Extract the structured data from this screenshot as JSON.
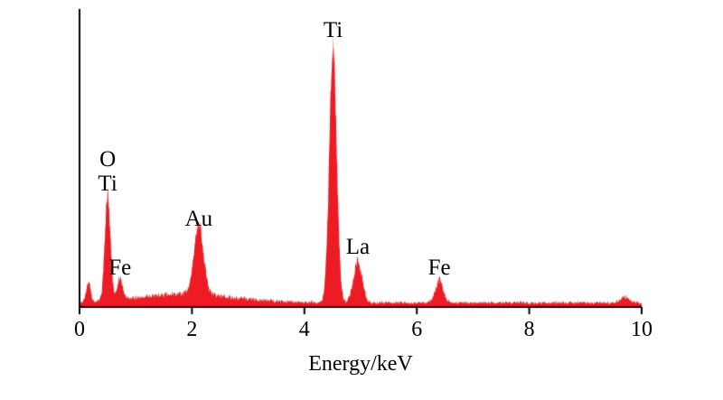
{
  "figure": {
    "background_color": "#ffffff",
    "axis_color": "#000000",
    "spectrum_color": "#ed1c24"
  },
  "chart_data": {
    "type": "area",
    "title": "",
    "xlabel": "Energy/keV",
    "ylabel": "",
    "xlim": [
      0,
      10
    ],
    "x_ticks": [
      0,
      2,
      4,
      6,
      8,
      10
    ],
    "grid": false,
    "legend": false,
    "peaks": [
      {
        "label": "",
        "energy": 0.16,
        "height": 0.07,
        "width": 0.035
      },
      {
        "label": "O\nTi",
        "energy": 0.5,
        "height": 0.36,
        "width": 0.05
      },
      {
        "label": "Fe",
        "energy": 0.72,
        "height": 0.075,
        "width": 0.045
      },
      {
        "label": "Au",
        "energy": 2.12,
        "height": 0.24,
        "width": 0.085
      },
      {
        "label": "Ti",
        "energy": 4.51,
        "height": 0.88,
        "width": 0.065
      },
      {
        "label": "La",
        "energy": 4.95,
        "height": 0.145,
        "width": 0.075
      },
      {
        "label": "Fe",
        "energy": 6.4,
        "height": 0.075,
        "width": 0.07
      },
      {
        "label": "",
        "energy": 9.7,
        "height": 0.02,
        "width": 0.08
      }
    ],
    "background_continuum": {
      "base": 0.012,
      "hump_center": 1.9,
      "hump_height": 0.03,
      "hump_width": 0.85
    }
  }
}
